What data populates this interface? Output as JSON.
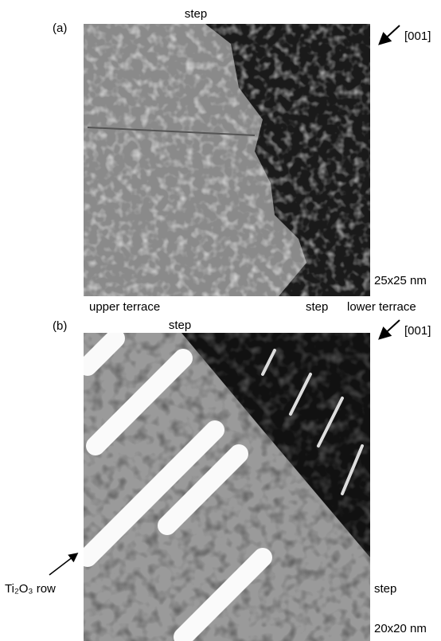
{
  "panel_a": {
    "label": "(a)",
    "step_top": "step",
    "direction": "[001]",
    "scale": "25x25 nm",
    "upper_terrace": "upper terrace",
    "step_bottom": "step",
    "lower_terrace": "lower terrace"
  },
  "panel_b": {
    "label": "(b)",
    "step_top": "step",
    "direction": "[001]",
    "row_label": "Ti₂O₃ row",
    "step_right": "step",
    "scale": "20x20 nm"
  }
}
